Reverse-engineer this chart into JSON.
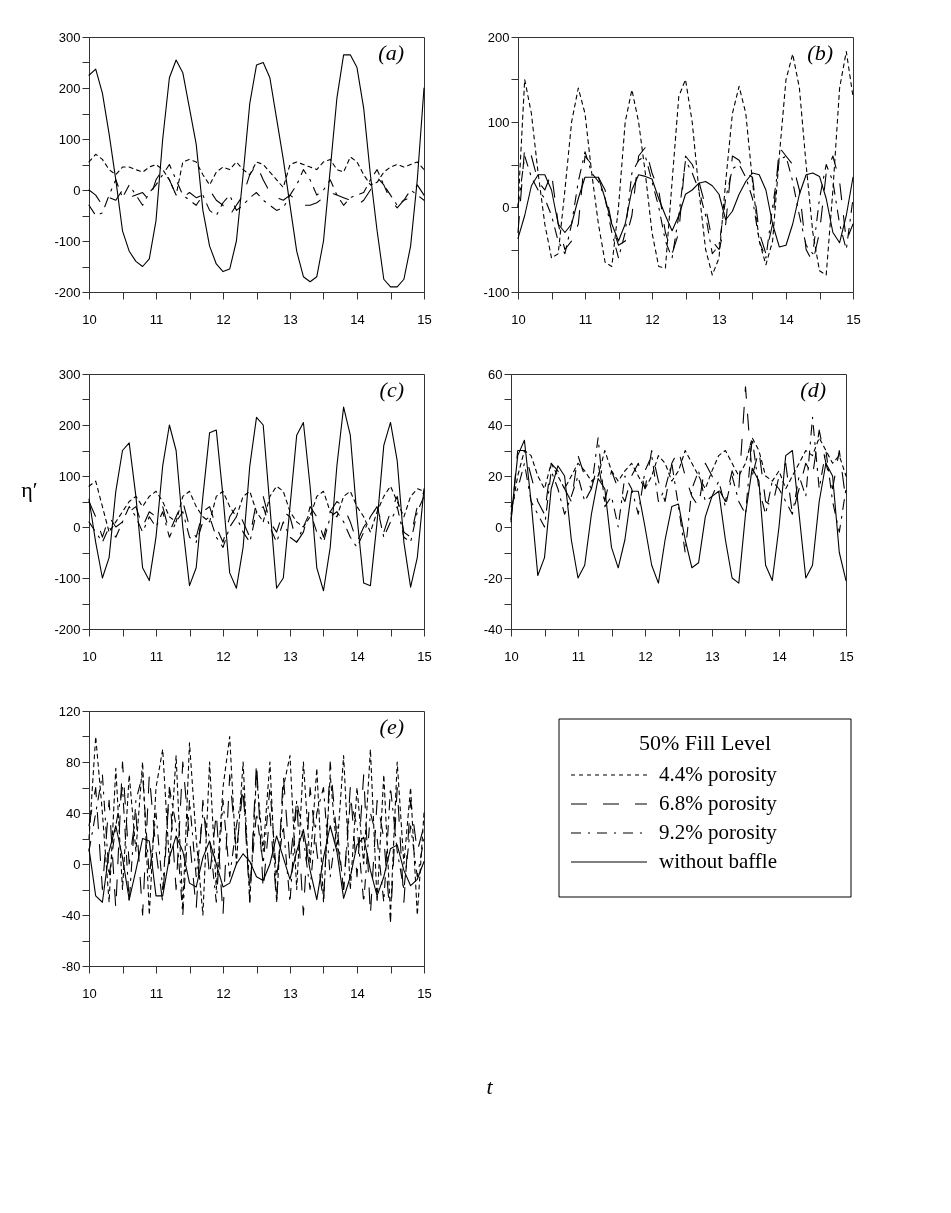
{
  "chart_data": [
    {
      "type": "line",
      "annotations": [
        "(a)"
      ],
      "xlim": [
        10,
        15
      ],
      "ylim": [
        -200,
        300
      ],
      "xticks": [
        10,
        {
          "value": 10.5,
          "label": null
        },
        11,
        {
          "value": 11.5,
          "label": null
        },
        12,
        {
          "value": 12.5,
          "label": null
        },
        13,
        {
          "value": 13.5,
          "label": null
        },
        14,
        {
          "value": 14.5,
          "label": null
        },
        15
      ],
      "yticks": [
        -200,
        {
          "value": -150,
          "label": null
        },
        -100,
        {
          "value": -50,
          "label": null
        },
        0,
        {
          "value": 50,
          "label": null
        },
        100,
        {
          "value": 150,
          "label": null
        },
        200,
        {
          "value": 250,
          "label": null
        },
        300
      ],
      "x": [
        10,
        10.1,
        10.2,
        10.3,
        10.4,
        10.5,
        10.6,
        10.7,
        10.8,
        10.9,
        11,
        11.1,
        11.2,
        11.3,
        11.4,
        11.5,
        11.6,
        11.7,
        11.8,
        11.9,
        12,
        12.1,
        12.2,
        12.3,
        12.4,
        12.5,
        12.6,
        12.7,
        12.8,
        12.9,
        13,
        13.1,
        13.2,
        13.3,
        13.4,
        13.5,
        13.6,
        13.7,
        13.8,
        13.9,
        14,
        14.1,
        14.2,
        14.3,
        14.4,
        14.5,
        14.6,
        14.7,
        14.8,
        14.9,
        15
      ],
      "series": [
        {
          "color": "#000000",
          "line_style": "dashed",
          "values": [
            55,
            70,
            60,
            40,
            30,
            45,
            45,
            40,
            35,
            45,
            50,
            40,
            20,
            -10,
            55,
            60,
            55,
            30,
            10,
            35,
            45,
            40,
            55,
            40,
            30,
            55,
            50,
            35,
            20,
            5,
            50,
            55,
            50,
            45,
            40,
            55,
            60,
            40,
            35,
            65,
            55,
            30,
            10,
            15,
            35,
            45,
            50,
            45,
            50,
            55,
            40
          ]
        },
        {
          "color": "#000000",
          "line_style": "longdash",
          "values": [
            0,
            -10,
            -30,
            -15,
            -20,
            0,
            -15,
            -10,
            -5,
            -20,
            20,
            40,
            20,
            -10,
            -15,
            -5,
            -15,
            -10,
            0,
            -20,
            -30,
            -50,
            -30,
            -10,
            30,
            50,
            20,
            -5,
            -15,
            -20,
            -10,
            -20,
            -30,
            -30,
            -25,
            -15,
            -5,
            -10,
            -15,
            -20,
            -30,
            -20,
            0,
            25,
            10,
            -20,
            -35,
            -20,
            -15,
            10,
            -10
          ]
        },
        {
          "color": "#000000",
          "line_style": "dashdot",
          "values": [
            -30,
            -50,
            -45,
            -10,
            20,
            -15,
            10,
            -10,
            -30,
            -5,
            10,
            30,
            50,
            20,
            -10,
            -20,
            -30,
            -10,
            -40,
            -50,
            -25,
            -10,
            -40,
            -30,
            -15,
            -5,
            -20,
            -30,
            -40,
            -35,
            -10,
            10,
            40,
            20,
            -10,
            0,
            20,
            -10,
            -30,
            -15,
            -10,
            -5,
            20,
            40,
            10,
            -10,
            -30,
            -20,
            0,
            -10,
            -20
          ]
        },
        {
          "color": "#000000",
          "line_style": "solid",
          "values": [
            225,
            237,
            190,
            110,
            20,
            -80,
            -120,
            -140,
            -150,
            -135,
            -60,
            100,
            220,
            255,
            230,
            160,
            90,
            -40,
            -110,
            -145,
            -160,
            -155,
            -100,
            30,
            170,
            245,
            250,
            220,
            140,
            60,
            -30,
            -120,
            -170,
            -180,
            -170,
            -100,
            40,
            180,
            265,
            265,
            240,
            160,
            30,
            -80,
            -175,
            -190,
            -190,
            -175,
            -110,
            20,
            200
          ]
        }
      ]
    },
    {
      "type": "line",
      "annotations": [
        "(b)"
      ],
      "xlim": [
        10,
        15
      ],
      "ylim": [
        -100,
        200
      ],
      "xticks": [
        10,
        {
          "value": 10.5,
          "label": null
        },
        11,
        {
          "value": 11.5,
          "label": null
        },
        12,
        {
          "value": 12.5,
          "label": null
        },
        13,
        {
          "value": 13.5,
          "label": null
        },
        14,
        {
          "value": 14.5,
          "label": null
        },
        15
      ],
      "yticks": [
        -100,
        {
          "value": -50,
          "label": null
        },
        0,
        {
          "value": 50,
          "label": null
        },
        100,
        {
          "value": 150,
          "label": null
        },
        200
      ],
      "x": [
        10,
        10.1,
        10.2,
        10.3,
        10.4,
        10.5,
        10.6,
        10.7,
        10.8,
        10.9,
        11,
        11.1,
        11.2,
        11.3,
        11.4,
        11.5,
        11.6,
        11.7,
        11.8,
        11.9,
        12,
        12.1,
        12.2,
        12.3,
        12.4,
        12.5,
        12.6,
        12.7,
        12.8,
        12.9,
        13,
        13.1,
        13.2,
        13.3,
        13.4,
        13.5,
        13.6,
        13.7,
        13.8,
        13.9,
        14,
        14.1,
        14.2,
        14.3,
        14.4,
        14.5,
        14.6,
        14.7,
        14.8,
        14.9,
        15
      ],
      "series": [
        {
          "color": "#000000",
          "line_style": "dashed",
          "values": [
            0,
            150,
            110,
            40,
            -20,
            -60,
            -55,
            20,
            100,
            140,
            110,
            40,
            -20,
            -65,
            -70,
            0,
            100,
            138,
            100,
            40,
            -30,
            -70,
            -72,
            30,
            130,
            150,
            100,
            20,
            -50,
            -80,
            -60,
            30,
            110,
            142,
            110,
            30,
            -40,
            -68,
            -40,
            60,
            150,
            180,
            140,
            50,
            -30,
            -75,
            -80,
            20,
            140,
            183,
            130
          ]
        },
        {
          "color": "#000000",
          "line_style": "longdash",
          "values": [
            -30,
            70,
            60,
            30,
            20,
            40,
            -20,
            -50,
            -40,
            -20,
            60,
            50,
            35,
            20,
            -20,
            -45,
            -40,
            -10,
            60,
            70,
            40,
            20,
            -30,
            -55,
            -30,
            60,
            50,
            30,
            0,
            -40,
            -50,
            -20,
            60,
            55,
            40,
            35,
            -30,
            -55,
            -20,
            70,
            60,
            50,
            20,
            -50,
            -65,
            -30,
            40,
            60,
            30,
            -40,
            -20
          ]
        },
        {
          "color": "#000000",
          "line_style": "dashdot",
          "values": [
            0,
            60,
            35,
            20,
            10,
            -10,
            -40,
            -55,
            -20,
            30,
            65,
            40,
            30,
            10,
            -30,
            -60,
            -30,
            40,
            55,
            60,
            30,
            0,
            -40,
            -60,
            -10,
            55,
            40,
            20,
            -10,
            -55,
            -45,
            10,
            45,
            50,
            35,
            10,
            -40,
            -60,
            0,
            55,
            60,
            30,
            -10,
            -45,
            -55,
            10,
            50,
            30,
            -20,
            -50,
            10
          ]
        },
        {
          "color": "#000000",
          "line_style": "solid",
          "values": [
            -37,
            -10,
            25,
            38,
            38,
            20,
            -20,
            -30,
            -20,
            10,
            35,
            35,
            35,
            10,
            -20,
            -40,
            -20,
            20,
            38,
            36,
            33,
            10,
            -10,
            -28,
            -10,
            15,
            20,
            28,
            30,
            25,
            15,
            -15,
            -5,
            15,
            30,
            40,
            38,
            20,
            -20,
            -47,
            -45,
            -20,
            15,
            38,
            40,
            36,
            10,
            -30,
            -42,
            -10,
            35
          ]
        }
      ]
    },
    {
      "type": "line",
      "annotations": [
        "(c)"
      ],
      "ylabel": "η′",
      "xlim": [
        10,
        15
      ],
      "ylim": [
        -200,
        300
      ],
      "xticks": [
        10,
        {
          "value": 10.5,
          "label": null
        },
        11,
        {
          "value": 11.5,
          "label": null
        },
        12,
        {
          "value": 12.5,
          "label": null
        },
        13,
        {
          "value": 13.5,
          "label": null
        },
        14,
        {
          "value": 14.5,
          "label": null
        },
        15
      ],
      "yticks": [
        -200,
        {
          "value": -150,
          "label": null
        },
        -100,
        {
          "value": -50,
          "label": null
        },
        0,
        {
          "value": 50,
          "label": null
        },
        100,
        {
          "value": 150,
          "label": null
        },
        200,
        {
          "value": 250,
          "label": null
        },
        300
      ],
      "x": [
        10,
        10.1,
        10.2,
        10.3,
        10.4,
        10.5,
        10.6,
        10.7,
        10.8,
        10.9,
        11,
        11.1,
        11.2,
        11.3,
        11.4,
        11.5,
        11.6,
        11.7,
        11.8,
        11.9,
        12,
        12.1,
        12.2,
        12.3,
        12.4,
        12.5,
        12.6,
        12.7,
        12.8,
        12.9,
        13,
        13.1,
        13.2,
        13.3,
        13.4,
        13.5,
        13.6,
        13.7,
        13.8,
        13.9,
        14,
        14.1,
        14.2,
        14.3,
        14.4,
        14.5,
        14.6,
        14.7,
        14.8,
        14.9,
        15
      ],
      "series": [
        {
          "color": "#000000",
          "line_style": "dashed",
          "values": [
            80,
            90,
            40,
            -10,
            10,
            30,
            50,
            60,
            40,
            60,
            70,
            50,
            20,
            10,
            60,
            70,
            40,
            20,
            10,
            60,
            70,
            40,
            20,
            60,
            70,
            30,
            10,
            60,
            80,
            70,
            30,
            10,
            0,
            20,
            60,
            70,
            30,
            20,
            60,
            70,
            40,
            20,
            -10,
            30,
            60,
            80,
            50,
            20,
            60,
            75,
            70
          ]
        },
        {
          "color": "#000000",
          "line_style": "longdash",
          "values": [
            50,
            20,
            -20,
            20,
            0,
            10,
            30,
            40,
            0,
            30,
            20,
            40,
            -10,
            20,
            50,
            0,
            -20,
            30,
            40,
            0,
            -30,
            20,
            40,
            10,
            -20,
            50,
            60,
            10,
            -10,
            30,
            20,
            -30,
            -10,
            40,
            20,
            -20,
            30,
            50,
            40,
            10,
            -30,
            0,
            20,
            40,
            -10,
            30,
            60,
            -10,
            -20,
            40,
            70
          ]
        },
        {
          "color": "#000000",
          "line_style": "dashdot",
          "values": [
            10,
            -10,
            -30,
            0,
            -20,
            10,
            40,
            20,
            -10,
            20,
            0,
            30,
            -20,
            10,
            30,
            -20,
            -30,
            10,
            20,
            -20,
            -40,
            0,
            20,
            -10,
            -30,
            30,
            40,
            0,
            -30,
            10,
            -20,
            -30,
            0,
            30,
            -10,
            -30,
            20,
            30,
            10,
            -20,
            -40,
            -10,
            20,
            40,
            -20,
            10,
            40,
            -20,
            -30,
            30,
            60
          ]
        },
        {
          "color": "#000000",
          "line_style": "solid",
          "values": [
            55,
            -30,
            -100,
            -60,
            70,
            150,
            165,
            60,
            -80,
            -105,
            -20,
            120,
            200,
            150,
            0,
            -115,
            -80,
            60,
            185,
            190,
            60,
            -90,
            -120,
            -40,
            120,
            215,
            200,
            40,
            -120,
            -100,
            40,
            180,
            205,
            80,
            -80,
            -125,
            -40,
            120,
            235,
            180,
            20,
            -110,
            -115,
            10,
            160,
            205,
            130,
            -30,
            -118,
            -60,
            75
          ]
        }
      ]
    },
    {
      "type": "line",
      "annotations": [
        "(d)"
      ],
      "xlim": [
        10,
        15
      ],
      "ylim": [
        -40,
        60
      ],
      "xticks": [
        10,
        {
          "value": 10.5,
          "label": null
        },
        11,
        {
          "value": 11.5,
          "label": null
        },
        12,
        {
          "value": 12.5,
          "label": null
        },
        13,
        {
          "value": 13.5,
          "label": null
        },
        14,
        {
          "value": 14.5,
          "label": null
        },
        15
      ],
      "yticks": [
        -40,
        {
          "value": -30,
          "label": null
        },
        -20,
        {
          "value": -10,
          "label": null
        },
        0,
        {
          "value": 10,
          "label": null
        },
        20,
        {
          "value": 30,
          "label": null
        },
        40,
        {
          "value": 50,
          "label": null
        },
        60
      ],
      "x": [
        10,
        10.1,
        10.2,
        10.3,
        10.4,
        10.5,
        10.6,
        10.7,
        10.8,
        10.9,
        11,
        11.1,
        11.2,
        11.3,
        11.4,
        11.5,
        11.6,
        11.7,
        11.8,
        11.9,
        12,
        12.1,
        12.2,
        12.3,
        12.4,
        12.5,
        12.6,
        12.7,
        12.8,
        12.9,
        13,
        13.1,
        13.2,
        13.3,
        13.4,
        13.5,
        13.6,
        13.7,
        13.8,
        13.9,
        14,
        14.1,
        14.2,
        14.3,
        14.4,
        14.5,
        14.6,
        14.7,
        14.8,
        14.9,
        15
      ],
      "series": [
        {
          "color": "#000000",
          "line_style": "dashed",
          "values": [
            5,
            20,
            30,
            28,
            20,
            15,
            25,
            20,
            15,
            20,
            25,
            22,
            18,
            20,
            30,
            22,
            18,
            22,
            25,
            20,
            15,
            20,
            28,
            25,
            18,
            22,
            30,
            25,
            20,
            15,
            22,
            28,
            30,
            25,
            20,
            25,
            35,
            30,
            20,
            18,
            22,
            15,
            20,
            25,
            30,
            28,
            35,
            30,
            25,
            28,
            20
          ]
        },
        {
          "color": "#000000",
          "line_style": "longdash",
          "values": [
            2,
            30,
            30,
            20,
            10,
            5,
            25,
            22,
            15,
            10,
            28,
            20,
            15,
            25,
            10,
            22,
            15,
            10,
            20,
            25,
            15,
            30,
            18,
            10,
            25,
            30,
            20,
            12,
            8,
            25,
            20,
            15,
            10,
            22,
            15,
            55,
            20,
            30,
            10,
            8,
            20,
            25,
            5,
            15,
            25,
            20,
            38,
            25,
            15,
            30,
            10
          ]
        },
        {
          "color": "#000000",
          "line_style": "dashdot",
          "values": [
            8,
            15,
            25,
            10,
            5,
            0,
            22,
            15,
            5,
            12,
            20,
            10,
            15,
            35,
            8,
            12,
            0,
            20,
            15,
            5,
            22,
            28,
            10,
            15,
            25,
            8,
            -10,
            15,
            22,
            10,
            12,
            18,
            8,
            20,
            10,
            5,
            35,
            15,
            5,
            18,
            15,
            10,
            5,
            20,
            12,
            43,
            15,
            30,
            10,
            -2,
            15
          ]
        },
        {
          "color": "#000000",
          "line_style": "solid",
          "values": [
            3,
            28,
            34,
            10,
            -19,
            -12,
            15,
            24,
            20,
            -5,
            -20,
            -15,
            5,
            19,
            15,
            -8,
            -16,
            -5,
            14,
            14,
            0,
            -15,
            -22,
            -5,
            8,
            9,
            -5,
            -16,
            -14,
            4,
            12,
            14,
            -5,
            -20,
            -22,
            5,
            23,
            18,
            -15,
            -21,
            0,
            28,
            30,
            5,
            -20,
            -15,
            10,
            25,
            20,
            -10,
            -21
          ]
        }
      ]
    },
    {
      "type": "line",
      "annotations": [
        "(e)"
      ],
      "xlabel": "t",
      "legend": "right",
      "legend_title": "50% Fill Level",
      "xlim": [
        10,
        15
      ],
      "ylim": [
        -80,
        120
      ],
      "xticks": [
        10,
        {
          "value": 10.5,
          "label": null
        },
        11,
        {
          "value": 11.5,
          "label": null
        },
        12,
        {
          "value": 12.5,
          "label": null
        },
        13,
        {
          "value": 13.5,
          "label": null
        },
        14,
        {
          "value": 14.5,
          "label": null
        },
        15
      ],
      "yticks": [
        -80,
        {
          "value": -60,
          "label": null
        },
        -40,
        {
          "value": -20,
          "label": null
        },
        0,
        {
          "value": 20,
          "label": null
        },
        40,
        {
          "value": 60,
          "label": null
        },
        80,
        {
          "value": 100,
          "label": null
        },
        120
      ],
      "x": [
        10,
        10.1,
        10.2,
        10.3,
        10.4,
        10.5,
        10.6,
        10.7,
        10.8,
        10.9,
        11,
        11.1,
        11.2,
        11.3,
        11.4,
        11.5,
        11.6,
        11.7,
        11.8,
        11.9,
        12,
        12.1,
        12.2,
        12.3,
        12.4,
        12.5,
        12.6,
        12.7,
        12.8,
        12.9,
        13,
        13.1,
        13.2,
        13.3,
        13.4,
        13.5,
        13.6,
        13.7,
        13.8,
        13.9,
        14,
        14.1,
        14.2,
        14.3,
        14.4,
        14.5,
        14.6,
        14.7,
        14.8,
        14.9,
        15
      ],
      "series": [
        {
          "name": "4.4% porosity",
          "color": "#000000",
          "line_style": "dashed",
          "values": [
            20,
            100,
            40,
            -30,
            75,
            -20,
            70,
            10,
            80,
            -40,
            60,
            90,
            0,
            85,
            -35,
            95,
            20,
            -40,
            80,
            -20,
            60,
            100,
            0,
            80,
            -30,
            70,
            10,
            80,
            -30,
            60,
            85,
            -20,
            80,
            0,
            75,
            -30,
            70,
            10,
            85,
            -20,
            60,
            0,
            90,
            -30,
            70,
            -40,
            80,
            0,
            60,
            -40,
            40
          ]
        },
        {
          "name": "6.8% porosity",
          "color": "#000000",
          "line_style": "longdash",
          "values": [
            30,
            60,
            -20,
            50,
            -35,
            80,
            0,
            40,
            -40,
            70,
            10,
            -30,
            60,
            -20,
            80,
            20,
            -35,
            50,
            -10,
            40,
            -40,
            70,
            10,
            60,
            -30,
            80,
            -20,
            40,
            -30,
            70,
            0,
            50,
            -40,
            60,
            10,
            -30,
            80,
            20,
            -20,
            60,
            -10,
            70,
            -40,
            50,
            20,
            -45,
            60,
            -30,
            50,
            10,
            30
          ]
        },
        {
          "name": "9.2% porosity",
          "color": "#000000",
          "line_style": "dashdot",
          "values": [
            10,
            40,
            70,
            -10,
            30,
            60,
            -30,
            50,
            70,
            -10,
            40,
            -20,
            60,
            30,
            -40,
            50,
            -10,
            40,
            20,
            -30,
            50,
            -10,
            30,
            60,
            -20,
            40,
            0,
            60,
            -10,
            30,
            -30,
            50,
            20,
            -20,
            40,
            60,
            -10,
            30,
            -20,
            50,
            30,
            -30,
            40,
            20,
            -30,
            60,
            10,
            -20,
            30,
            -10,
            20
          ]
        },
        {
          "name": "without baffle",
          "color": "#000000",
          "line_style": "solid",
          "values": [
            12,
            -25,
            -30,
            10,
            30,
            5,
            -28,
            -5,
            20,
            18,
            -25,
            -25,
            5,
            22,
            10,
            -15,
            -18,
            5,
            18,
            0,
            -18,
            -15,
            0,
            8,
            2,
            -10,
            -13,
            0,
            22,
            5,
            -12,
            10,
            27,
            -5,
            -28,
            5,
            30,
            10,
            -27,
            -10,
            15,
            21,
            -5,
            -25,
            -10,
            12,
            15,
            -5,
            -17,
            -12,
            2
          ]
        }
      ]
    }
  ]
}
